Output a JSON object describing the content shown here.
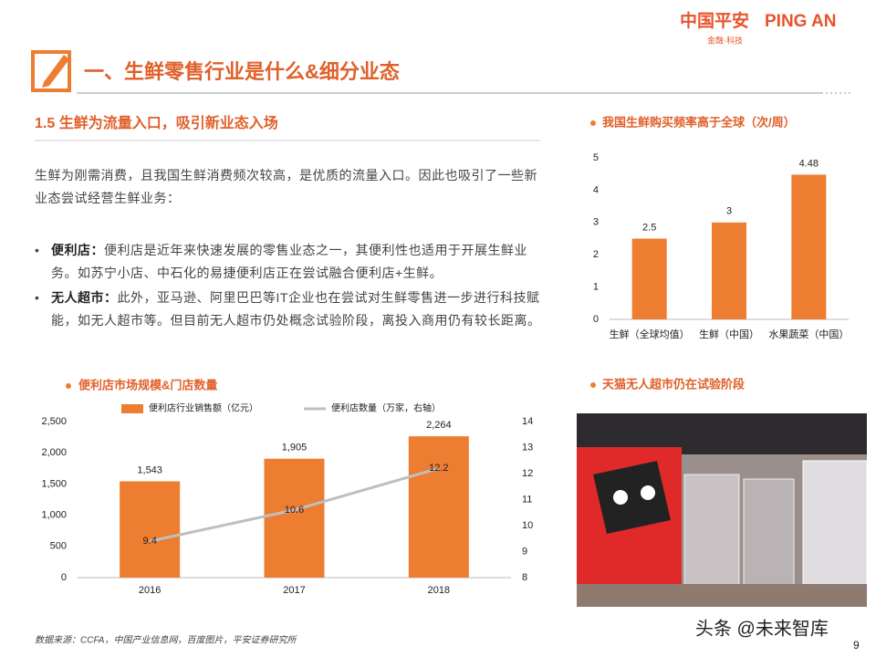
{
  "logo": {
    "brand_cn": "中国平安",
    "brand_en": "PING AN",
    "sub": "金融·科技"
  },
  "section_title": "一、生鲜零售行业是什么&细分业态",
  "subtitle": "1.5  生鲜为流量入口，吸引新业态入场",
  "intro": "生鲜为刚需消费，且我国生鲜消费频次较高，是优质的流量入口。因此也吸引了一些新业态尝试经营生鲜业务：",
  "bullets": [
    {
      "label": "便利店：",
      "text": "便利店是近年来快速发展的零售业态之一，其便利性也适用于开展生鲜业务。如苏宁小店、中石化的易捷便利店正在尝试融合便利店+生鲜。"
    },
    {
      "label": "无人超市：",
      "text": "此外，亚马逊、阿里巴巴等IT企业也在尝试对生鲜零售进一步进行科技赋能，如无人超市等。但目前无人超市仍处概念试验阶段，离投入商用仍有较长距离。"
    }
  ],
  "image_caption": "天猫无人超市仍在试验阶段",
  "source": "数据来源：CCFA，中国产业信息网，百度图片，平安证券研究所",
  "watermark": "头条 @未来智库",
  "page_number": "9",
  "chart_data": [
    {
      "type": "bar",
      "title": "我国生鲜购买频率高于全球（次/周）",
      "categories": [
        "生鲜（全球均值）",
        "生鲜（中国）",
        "水果蔬菜（中国）"
      ],
      "values": [
        2.5,
        3,
        4.48
      ],
      "color": "#ed7d31",
      "ylim": [
        0,
        5
      ],
      "yticks": [
        0,
        1,
        2,
        3,
        4,
        5
      ],
      "grid": false
    },
    {
      "type": "combo",
      "title": "便利店市场规模&门店数量",
      "categories": [
        "2016",
        "2017",
        "2018"
      ],
      "series": [
        {
          "name": "便利店行业销售额（亿元）",
          "color": "#ed7d31",
          "values": [
            1543,
            1905,
            2264
          ],
          "value_labels": [
            "1,543",
            "1,905",
            "2,264"
          ]
        },
        {
          "name": "便利店数量（万家，右轴）",
          "color": "#bfbfbf",
          "values": [
            9.4,
            10.6,
            12.2
          ],
          "axis": "y2"
        }
      ],
      "ylim": [
        0,
        2500
      ],
      "yticks": [
        0,
        500,
        {
          "value": 1000,
          "label": "1,000"
        },
        {
          "value": 1500,
          "label": "1,500"
        },
        {
          "value": 2000,
          "label": "2,000"
        },
        {
          "value": 2500,
          "label": "2,500"
        }
      ],
      "y2lim": [
        8,
        14
      ],
      "y2ticks": [
        8,
        9,
        10,
        11,
        12,
        13,
        14
      ],
      "grid": false
    }
  ]
}
